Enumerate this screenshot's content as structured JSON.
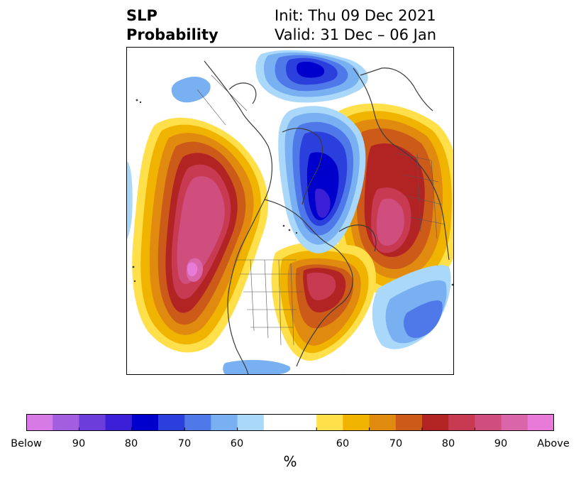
{
  "title": {
    "left_line1": "SLP",
    "left_line2": "Probability",
    "right_line1": "Init: Thu 09 Dec 2021",
    "right_line2": "Valid: 31 Dec – 06 Jan"
  },
  "colorbar": {
    "unit": "%",
    "tick_labels": [
      "Below",
      "90",
      "80",
      "70",
      "60",
      "60",
      "70",
      "80",
      "90",
      "Above"
    ],
    "bins": [
      {
        "color": "#d87ae6"
      },
      {
        "color": "#a35ee0"
      },
      {
        "color": "#6d3ddb"
      },
      {
        "color": "#3a1fd6"
      },
      {
        "color": "#0000cc"
      },
      {
        "color": "#2a3fdc"
      },
      {
        "color": "#4f78e8"
      },
      {
        "color": "#78b0f2"
      },
      {
        "color": "#aad8fa"
      },
      {
        "color": "#ffffff"
      },
      {
        "color": "#ffffff"
      },
      {
        "color": "#ffe04a"
      },
      {
        "color": "#f0b400"
      },
      {
        "color": "#e08a10"
      },
      {
        "color": "#cc5a18"
      },
      {
        "color": "#b22424"
      },
      {
        "color": "#c83a52"
      },
      {
        "color": "#d04e7e"
      },
      {
        "color": "#da66aa"
      },
      {
        "color": "#e87ad8"
      }
    ]
  },
  "map": {
    "projection": "north polar stereographic",
    "field": "SLP probability"
  }
}
